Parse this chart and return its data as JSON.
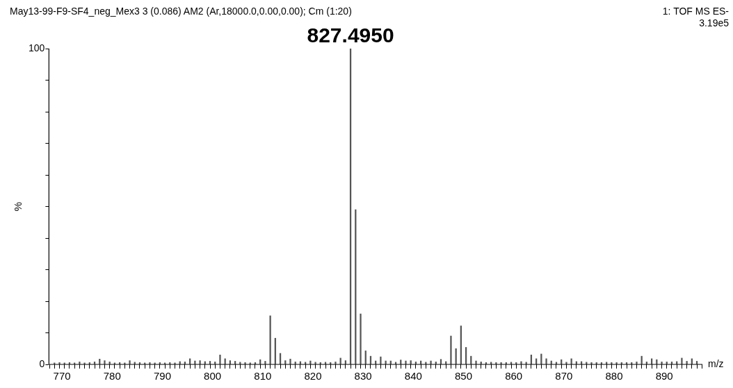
{
  "chart_data": {
    "type": "bar",
    "title": "May13-99-F9-SF4_neg_Mex3 3 (0.086) AM2 (Ar,18000.0,0.00,0.00); Cm (1:20)",
    "xlabel": "m/z",
    "ylabel": "%",
    "annotations": [
      "1: TOF MS ES-",
      "3.19e5",
      {
        "text": "827.4950",
        "x": 827.495,
        "y": 100
      }
    ],
    "x": [
      768.5,
      769.5,
      770.5,
      771.5,
      772.5,
      773.5,
      774.5,
      775.5,
      776.5,
      777.5,
      778.5,
      779.5,
      780.5,
      781.5,
      782.5,
      783.5,
      784.5,
      785.5,
      786.5,
      787.5,
      788.5,
      789.5,
      790.5,
      791.5,
      792.5,
      793.5,
      794.5,
      795.5,
      796.5,
      797.5,
      798.5,
      799.5,
      800.5,
      801.5,
      802.5,
      803.5,
      804.5,
      805.5,
      806.5,
      807.5,
      808.5,
      809.5,
      810.5,
      811.5,
      812.5,
      813.5,
      814.5,
      815.5,
      816.5,
      817.5,
      818.5,
      819.5,
      820.5,
      821.5,
      822.5,
      823.5,
      824.5,
      825.5,
      826.5,
      827.495,
      828.5,
      829.5,
      830.5,
      831.5,
      832.5,
      833.5,
      834.5,
      835.5,
      836.5,
      837.5,
      838.5,
      839.5,
      840.5,
      841.5,
      842.5,
      843.5,
      844.5,
      845.5,
      846.5,
      847.5,
      848.5,
      849.5,
      850.5,
      851.5,
      852.5,
      853.5,
      854.5,
      855.5,
      856.5,
      857.5,
      858.5,
      859.5,
      860.5,
      861.5,
      862.5,
      863.5,
      864.5,
      865.5,
      866.5,
      867.5,
      868.5,
      869.5,
      870.5,
      871.5,
      872.5,
      873.5,
      874.5,
      875.5,
      876.5,
      877.5,
      878.5,
      879.5,
      880.5,
      881.5,
      882.5,
      883.5,
      884.5,
      885.5,
      886.5,
      887.5,
      888.5,
      889.5,
      890.5,
      891.5,
      892.5,
      893.5,
      894.5,
      895.5,
      896.5
    ],
    "values": [
      0.5,
      0.6,
      0.5,
      0.6,
      0.5,
      0.8,
      0.5,
      0.6,
      0.8,
      1.7,
      1.2,
      0.8,
      0.5,
      0.6,
      0.5,
      1.2,
      0.7,
      0.6,
      0.5,
      0.6,
      0.5,
      0.6,
      0.5,
      0.6,
      0.5,
      0.9,
      0.8,
      1.8,
      1.1,
      1.2,
      0.9,
      1,
      0.8,
      3,
      1.8,
      1.2,
      1,
      0.7,
      0.6,
      0.5,
      0.6,
      1.5,
      1,
      15.4,
      8.3,
      3.5,
      1.2,
      1.7,
      0.8,
      0.9,
      0.7,
      1.1,
      0.7,
      0.6,
      0.7,
      0.6,
      0.8,
      2,
      1.2,
      100,
      49,
      16,
      4.3,
      2.6,
      1.1,
      2.4,
      1.1,
      1.1,
      0.7,
      1.4,
      1.1,
      1.2,
      0.8,
      1.1,
      0.7,
      1.1,
      0.8,
      1.6,
      0.9,
      9,
      5,
      12.2,
      5.4,
      2.6,
      1.1,
      0.8,
      0.6,
      0.7,
      0.6,
      0.6,
      0.6,
      0.7,
      0.6,
      0.9,
      0.7,
      3,
      1.8,
      3.3,
      1.8,
      1.1,
      0.7,
      1.5,
      0.7,
      1.8,
      0.9,
      0.9,
      0.7,
      0.6,
      0.6,
      0.6,
      0.7,
      0.6,
      0.6,
      0.6,
      0.6,
      0.6,
      0.8,
      2.6,
      0.8,
      1.8,
      1.5,
      0.8,
      0.8,
      0.8,
      0.9,
      2,
      1,
      1.8,
      1
    ],
    "color": "#555555",
    "xlim": [
      767.4,
      897.6
    ],
    "xticks": [
      {
        "value": 768,
        "label": null
      },
      {
        "value": 769,
        "label": null
      },
      770,
      {
        "value": 771,
        "label": null
      },
      {
        "value": 772,
        "label": null
      },
      {
        "value": 773,
        "label": null
      },
      {
        "value": 774,
        "label": null
      },
      {
        "value": 775,
        "label": null
      },
      {
        "value": 776,
        "label": null
      },
      {
        "value": 777,
        "label": null
      },
      {
        "value": 778,
        "label": null
      },
      {
        "value": 779,
        "label": null
      },
      780,
      {
        "value": 781,
        "label": null
      },
      {
        "value": 782,
        "label": null
      },
      {
        "value": 783,
        "label": null
      },
      {
        "value": 784,
        "label": null
      },
      {
        "value": 785,
        "label": null
      },
      {
        "value": 786,
        "label": null
      },
      {
        "value": 787,
        "label": null
      },
      {
        "value": 788,
        "label": null
      },
      {
        "value": 789,
        "label": null
      },
      790,
      {
        "value": 791,
        "label": null
      },
      {
        "value": 792,
        "label": null
      },
      {
        "value": 793,
        "label": null
      },
      {
        "value": 794,
        "label": null
      },
      {
        "value": 795,
        "label": null
      },
      {
        "value": 796,
        "label": null
      },
      {
        "value": 797,
        "label": null
      },
      {
        "value": 798,
        "label": null
      },
      {
        "value": 799,
        "label": null
      },
      800,
      {
        "value": 801,
        "label": null
      },
      {
        "value": 802,
        "label": null
      },
      {
        "value": 803,
        "label": null
      },
      {
        "value": 804,
        "label": null
      },
      {
        "value": 805,
        "label": null
      },
      {
        "value": 806,
        "label": null
      },
      {
        "value": 807,
        "label": null
      },
      {
        "value": 808,
        "label": null
      },
      {
        "value": 809,
        "label": null
      },
      810,
      {
        "value": 811,
        "label": null
      },
      {
        "value": 812,
        "label": null
      },
      {
        "value": 813,
        "label": null
      },
      {
        "value": 814,
        "label": null
      },
      {
        "value": 815,
        "label": null
      },
      {
        "value": 816,
        "label": null
      },
      {
        "value": 817,
        "label": null
      },
      {
        "value": 818,
        "label": null
      },
      {
        "value": 819,
        "label": null
      },
      820,
      {
        "value": 821,
        "label": null
      },
      {
        "value": 822,
        "label": null
      },
      {
        "value": 823,
        "label": null
      },
      {
        "value": 824,
        "label": null
      },
      {
        "value": 825,
        "label": null
      },
      {
        "value": 826,
        "label": null
      },
      {
        "value": 827,
        "label": null
      },
      {
        "value": 828,
        "label": null
      },
      {
        "value": 829,
        "label": null
      },
      830,
      {
        "value": 831,
        "label": null
      },
      {
        "value": 832,
        "label": null
      },
      {
        "value": 833,
        "label": null
      },
      {
        "value": 834,
        "label": null
      },
      {
        "value": 835,
        "label": null
      },
      {
        "value": 836,
        "label": null
      },
      {
        "value": 837,
        "label": null
      },
      {
        "value": 838,
        "label": null
      },
      {
        "value": 839,
        "label": null
      },
      840,
      {
        "value": 841,
        "label": null
      },
      {
        "value": 842,
        "label": null
      },
      {
        "value": 843,
        "label": null
      },
      {
        "value": 844,
        "label": null
      },
      {
        "value": 845,
        "label": null
      },
      {
        "value": 846,
        "label": null
      },
      {
        "value": 847,
        "label": null
      },
      {
        "value": 848,
        "label": null
      },
      {
        "value": 849,
        "label": null
      },
      850,
      {
        "value": 851,
        "label": null
      },
      {
        "value": 852,
        "label": null
      },
      {
        "value": 853,
        "label": null
      },
      {
        "value": 854,
        "label": null
      },
      {
        "value": 855,
        "label": null
      },
      {
        "value": 856,
        "label": null
      },
      {
        "value": 857,
        "label": null
      },
      {
        "value": 858,
        "label": null
      },
      {
        "value": 859,
        "label": null
      },
      860,
      {
        "value": 861,
        "label": null
      },
      {
        "value": 862,
        "label": null
      },
      {
        "value": 863,
        "label": null
      },
      {
        "value": 864,
        "label": null
      },
      {
        "value": 865,
        "label": null
      },
      {
        "value": 866,
        "label": null
      },
      {
        "value": 867,
        "label": null
      },
      {
        "value": 868,
        "label": null
      },
      {
        "value": 869,
        "label": null
      },
      870,
      {
        "value": 871,
        "label": null
      },
      {
        "value": 872,
        "label": null
      },
      {
        "value": 873,
        "label": null
      },
      {
        "value": 874,
        "label": null
      },
      {
        "value": 875,
        "label": null
      },
      {
        "value": 876,
        "label": null
      },
      {
        "value": 877,
        "label": null
      },
      {
        "value": 878,
        "label": null
      },
      {
        "value": 879,
        "label": null
      },
      880,
      {
        "value": 881,
        "label": null
      },
      {
        "value": 882,
        "label": null
      },
      {
        "value": 883,
        "label": null
      },
      {
        "value": 884,
        "label": null
      },
      {
        "value": 885,
        "label": null
      },
      {
        "value": 886,
        "label": null
      },
      {
        "value": 887,
        "label": null
      },
      {
        "value": 888,
        "label": null
      },
      {
        "value": 889,
        "label": null
      },
      890,
      {
        "value": 891,
        "label": null
      },
      {
        "value": 892,
        "label": null
      },
      {
        "value": 893,
        "label": null
      },
      {
        "value": 894,
        "label": null
      },
      {
        "value": 895,
        "label": null
      },
      {
        "value": 896,
        "label": null
      },
      {
        "value": 897,
        "label": null
      }
    ],
    "ylim": [
      0,
      100
    ],
    "yticks": [
      0,
      {
        "value": 10,
        "label": null
      },
      {
        "value": 20,
        "label": null
      },
      {
        "value": 30,
        "label": null
      },
      {
        "value": 40,
        "label": null
      },
      {
        "value": 50,
        "label": null
      },
      {
        "value": 60,
        "label": null
      },
      {
        "value": 70,
        "label": null
      },
      {
        "value": 80,
        "label": null
      },
      {
        "value": 90,
        "label": null
      },
      100
    ]
  }
}
